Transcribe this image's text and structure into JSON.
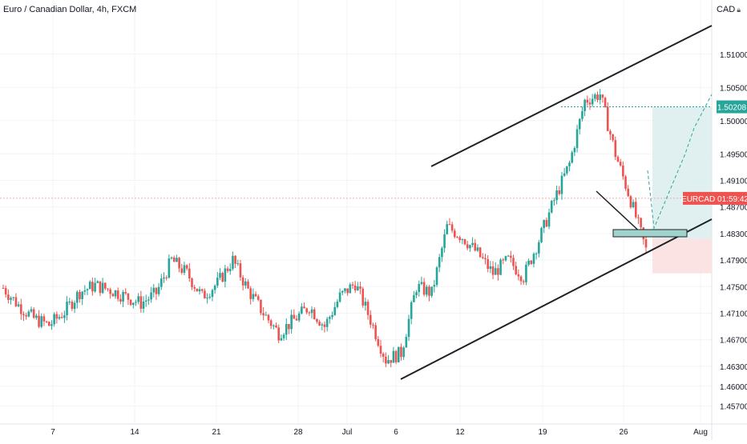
{
  "symbol": {
    "title": "Euro / Canadian Dollar, 4h, FXCM",
    "currency": "CAD"
  },
  "colors": {
    "up": "#26a69a",
    "down": "#ef5350",
    "trendline": "#1e2226",
    "target_line": "#26a69a",
    "price_line": "#f7a8a8",
    "price_tag_bg": "#ef5350",
    "grid": "#f2f3f5",
    "zone_fill": "#9fd3cc",
    "profit_fill": "#d8ecec",
    "loss_fill": "#fbe0e0"
  },
  "price_tags": {
    "target": "1.50208",
    "current": "EURCAD 01:59:42"
  },
  "chart_data": {
    "type": "candlestick",
    "interval": "4h",
    "x_tick_labels": [
      "7",
      "14",
      "21",
      "28",
      "Jul",
      "6",
      "12",
      "19",
      "26",
      "Aug"
    ],
    "y_tick_labels": [
      "1.51000",
      "1.50500",
      "1.50000",
      "1.49500",
      "1.49100",
      "1.48700",
      "1.48300",
      "1.47900",
      "1.47500",
      "1.47100",
      "1.46700",
      "1.46300",
      "1.46000",
      "1.45700"
    ],
    "ylim": [
      1.456,
      1.516
    ],
    "grid": true,
    "current_price": 1.4883,
    "target_price": 1.50208,
    "daily_closes": [
      [
        "Jun 2",
        1.4748
      ],
      [
        "Jun 3",
        1.4722
      ],
      [
        "Jun 4",
        1.4702
      ],
      [
        "Jun 7",
        1.4692
      ],
      [
        "Jun 8",
        1.4712
      ],
      [
        "Jun 9",
        1.4742
      ],
      [
        "Jun 10",
        1.4752
      ],
      [
        "Jun 11",
        1.4745
      ],
      [
        "Jun 14",
        1.4735
      ],
      [
        "Jun 15",
        1.4725
      ],
      [
        "Jun 16",
        1.474
      ],
      [
        "Jun 17",
        1.479
      ],
      [
        "Jun 18",
        1.477
      ],
      [
        "Jun 21",
        1.4735
      ],
      [
        "Jun 22",
        1.4755
      ],
      [
        "Jun 23",
        1.479
      ],
      [
        "Jun 24",
        1.4745
      ],
      [
        "Jun 25",
        1.471
      ],
      [
        "Jun 28",
        1.468
      ],
      [
        "Jun 29",
        1.47
      ],
      [
        "Jun 30",
        1.472
      ],
      [
        "Jul 1",
        1.469
      ],
      [
        "Jul 2",
        1.4735
      ],
      [
        "Jul 5",
        1.4755
      ],
      [
        "Jul 6",
        1.47
      ],
      [
        "Jul 7",
        1.464
      ],
      [
        "Jul 8",
        1.465
      ],
      [
        "Jul 9",
        1.475
      ],
      [
        "Jul 12",
        1.474
      ],
      [
        "Jul 13",
        1.484
      ],
      [
        "Jul 14",
        1.4825
      ],
      [
        "Jul 15",
        1.48
      ],
      [
        "Jul 16",
        1.477
      ],
      [
        "Jul 19",
        1.479
      ],
      [
        "Jul 20",
        1.4765
      ],
      [
        "Jul 21",
        1.482
      ],
      [
        "Jul 22",
        1.488
      ],
      [
        "Jul 23",
        1.4935
      ],
      [
        "Jul 26",
        1.503
      ],
      [
        "Jul 27",
        1.504
      ],
      [
        "Jul 28",
        1.495
      ],
      [
        "Jul 29",
        1.488
      ],
      [
        "Jul 30",
        1.4805
      ]
    ],
    "annotations": [
      "ascending channel (upper and lower trendlines)",
      "descending trendline into support zone",
      "support zone near 1.4825",
      "long position: target 1.50208, stop near 1.4770",
      "dashed projected path to target"
    ]
  }
}
